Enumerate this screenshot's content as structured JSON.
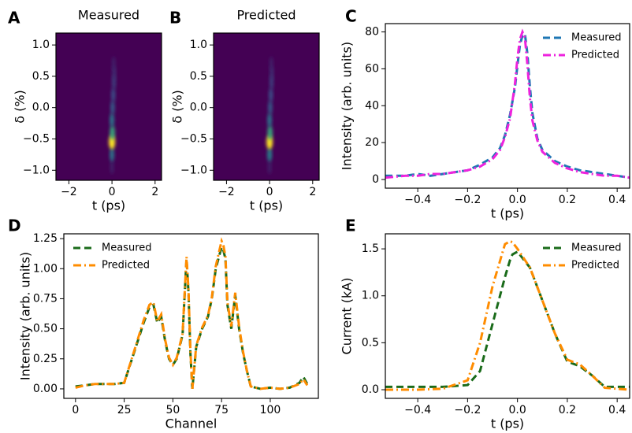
{
  "chart_data": [
    {
      "type": "heatmap",
      "panel": "A",
      "title": "Measured",
      "xlabel": "t (ps)",
      "ylabel": "δ (%)",
      "x": [
        0.0,
        0.0,
        0.0,
        0.02,
        0.0,
        0.03,
        0.06,
        0.09,
        0.1,
        0.08
      ],
      "y": [
        -0.95,
        -0.75,
        -0.55,
        -0.4,
        -0.2,
        0.0,
        0.2,
        0.4,
        0.55,
        0.7
      ],
      "intensity": [
        0.1,
        0.4,
        1.0,
        0.6,
        0.4,
        0.3,
        0.25,
        0.2,
        0.15,
        0.1
      ],
      "xlim": [
        -2.6,
        2.3
      ],
      "ylim": [
        -1.16,
        1.19
      ],
      "xticks": [
        {
          "value": -2,
          "label": "−2"
        },
        0,
        2
      ],
      "yticks": [
        {
          "value": -1.0,
          "label": "−1.0"
        },
        {
          "value": -0.5,
          "label": "−0.5"
        },
        {
          "value": 0.0,
          "label": "0.0"
        },
        0.5,
        {
          "value": 1.0,
          "label": "1.0"
        }
      ]
    },
    {
      "type": "heatmap",
      "panel": "B",
      "title": "Predicted",
      "xlabel": "t (ps)",
      "ylabel": "δ (%)",
      "x": [
        0.0,
        0.0,
        0.0,
        0.02,
        0.0,
        0.03,
        0.06,
        0.09,
        0.1,
        0.08
      ],
      "y": [
        -0.95,
        -0.75,
        -0.55,
        -0.4,
        -0.2,
        0.0,
        0.2,
        0.4,
        0.55,
        0.7
      ],
      "intensity": [
        0.1,
        0.45,
        1.0,
        0.6,
        0.4,
        0.3,
        0.25,
        0.2,
        0.15,
        0.1
      ],
      "xlim": [
        -2.6,
        2.3
      ],
      "ylim": [
        -1.16,
        1.19
      ],
      "xticks": [
        {
          "value": -2,
          "label": "−2"
        },
        0,
        2
      ],
      "yticks": [
        {
          "value": -1.0,
          "label": "−1.0"
        },
        {
          "value": -0.5,
          "label": "−0.5"
        },
        {
          "value": 0.0,
          "label": "0.0"
        },
        0.5,
        {
          "value": 1.0,
          "label": "1.0"
        }
      ]
    },
    {
      "type": "line",
      "panel": "C",
      "xlabel": "t (ps)",
      "ylabel": "Intensity (arb. units)",
      "legend": "upper right",
      "x": [
        -0.53,
        -0.45,
        -0.4,
        -0.35,
        -0.3,
        -0.25,
        -0.2,
        -0.15,
        -0.1,
        -0.07,
        -0.05,
        -0.03,
        -0.01,
        0.0,
        0.01,
        0.02,
        0.03,
        0.04,
        0.05,
        0.06,
        0.08,
        0.1,
        0.15,
        0.2,
        0.25,
        0.3,
        0.35,
        0.4,
        0.45
      ],
      "series": [
        {
          "name": "Measured",
          "color": "#1f77b4",
          "dash": "dashed",
          "values": [
            2,
            2,
            3,
            2,
            3,
            4,
            5,
            8,
            12,
            17,
            24,
            35,
            50,
            62,
            73,
            78,
            79,
            68,
            50,
            36,
            22,
            16,
            10,
            7,
            5,
            4,
            3,
            2,
            1
          ]
        },
        {
          "name": "Predicted",
          "color": "#ee22dd",
          "dash": "dashdot",
          "values": [
            1,
            2,
            2,
            3,
            3,
            4,
            5,
            7,
            11,
            16,
            23,
            33,
            52,
            66,
            76,
            80,
            77,
            62,
            44,
            32,
            21,
            15,
            9,
            6,
            4,
            3,
            2,
            2,
            1
          ]
        }
      ],
      "xlim": [
        -0.53,
        0.45
      ],
      "ylim": [
        -4.7,
        84.5
      ],
      "xticks": [
        {
          "value": -0.4,
          "label": "−0.4"
        },
        {
          "value": -0.2,
          "label": "−0.2"
        },
        {
          "value": 0.0,
          "label": "0.0"
        },
        0.2,
        0.4
      ],
      "yticks": [
        0,
        20,
        40,
        60,
        80
      ]
    },
    {
      "type": "line",
      "panel": "D",
      "xlabel": "Channel",
      "ylabel": "Intensity (arb. units)",
      "legend": "upper left",
      "x": [
        0,
        5,
        10,
        20,
        25,
        30,
        35,
        38,
        40,
        42,
        44,
        46,
        48,
        50,
        52,
        55,
        57,
        58,
        59,
        60,
        62,
        65,
        68,
        70,
        72,
        74,
        75,
        76,
        77,
        78,
        80,
        82,
        84,
        86,
        88,
        90,
        95,
        100,
        105,
        110,
        115,
        117,
        119
      ],
      "series": [
        {
          "name": "Measured",
          "color": "#1a6b1a",
          "dash": "dashed",
          "values": [
            0.02,
            0.03,
            0.04,
            0.04,
            0.05,
            0.3,
            0.55,
            0.68,
            0.7,
            0.55,
            0.6,
            0.4,
            0.25,
            0.2,
            0.25,
            0.45,
            1.08,
            0.8,
            0.3,
            0.0,
            0.35,
            0.5,
            0.6,
            0.75,
            1.0,
            1.12,
            1.18,
            1.15,
            1.08,
            0.7,
            0.5,
            0.78,
            0.5,
            0.3,
            0.15,
            0.02,
            0.0,
            0.01,
            0.0,
            0.01,
            0.05,
            0.1,
            0.04
          ]
        },
        {
          "name": "Predicted",
          "color": "#ff8c00",
          "dash": "dashdot",
          "values": [
            0.01,
            0.03,
            0.04,
            0.04,
            0.05,
            0.31,
            0.57,
            0.7,
            0.72,
            0.56,
            0.62,
            0.41,
            0.26,
            0.2,
            0.26,
            0.46,
            1.1,
            0.82,
            0.32,
            0.0,
            0.36,
            0.51,
            0.61,
            0.76,
            1.02,
            1.16,
            1.23,
            1.19,
            1.1,
            0.72,
            0.52,
            0.8,
            0.52,
            0.31,
            0.15,
            0.02,
            0.0,
            0.01,
            0.0,
            0.01,
            0.04,
            0.08,
            0.03
          ]
        }
      ],
      "xlim": [
        -6,
        124.7
      ],
      "ylim": [
        -0.079,
        1.29
      ],
      "xticks": [
        0,
        25,
        50,
        75,
        100
      ],
      "yticks": [
        {
          "value": 0,
          "label": "0.00"
        },
        0.25,
        {
          "value": 0.5,
          "label": "0.50"
        },
        0.75,
        {
          "value": 1,
          "label": "1.00"
        },
        1.25
      ]
    },
    {
      "type": "line",
      "panel": "E",
      "xlabel": "t (ps)",
      "ylabel": "Current (kA)",
      "legend": "upper right",
      "x": [
        -0.53,
        -0.4,
        -0.3,
        -0.2,
        -0.15,
        -0.1,
        -0.05,
        -0.03,
        -0.02,
        0.0,
        0.05,
        0.1,
        0.15,
        0.2,
        0.25,
        0.3,
        0.35,
        0.45
      ],
      "series": [
        {
          "name": "Measured",
          "color": "#1a6b1a",
          "dash": "dashed",
          "values": [
            0.03,
            0.03,
            0.03,
            0.05,
            0.2,
            0.7,
            1.2,
            1.38,
            1.44,
            1.47,
            1.3,
            0.95,
            0.6,
            0.3,
            0.25,
            0.15,
            0.03,
            0.03
          ]
        },
        {
          "name": "Predicted",
          "color": "#ff8c00",
          "dash": "dashdot",
          "values": [
            0.0,
            0.0,
            0.01,
            0.1,
            0.5,
            1.1,
            1.55,
            1.58,
            1.57,
            1.5,
            1.3,
            0.95,
            0.6,
            0.32,
            0.27,
            0.15,
            0.02,
            0.0
          ]
        }
      ],
      "xlim": [
        -0.53,
        0.45
      ],
      "ylim": [
        -0.092,
        1.66
      ],
      "xticks": [
        {
          "value": -0.4,
          "label": "−0.4"
        },
        {
          "value": -0.2,
          "label": "−0.2"
        },
        {
          "value": 0.0,
          "label": "0.0"
        },
        0.2,
        0.4
      ],
      "yticks": [
        {
          "value": 0,
          "label": "0.0"
        },
        0.5,
        {
          "value": 1,
          "label": "1.0"
        },
        1.5
      ]
    }
  ]
}
